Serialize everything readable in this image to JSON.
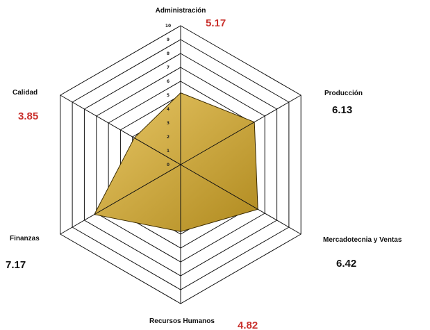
{
  "chart_data": {
    "type": "radar",
    "axes": [
      "Administración",
      "Producción",
      "Mercadotecnia y Ventas",
      "Recursos Humanos",
      "Finanzas",
      "Calidad"
    ],
    "values": [
      5.17,
      6.13,
      6.42,
      4.82,
      7.17,
      3.85
    ],
    "value_labels": [
      "5.17",
      "6.13",
      "6.42",
      "4.82",
      "7.17",
      "3.85"
    ],
    "highlight": [
      true,
      false,
      false,
      true,
      false,
      true
    ],
    "ticks": [
      "0",
      "1",
      "2",
      "3",
      "4",
      "5",
      "6",
      "7",
      "8",
      "9",
      "10"
    ],
    "range": [
      0,
      10
    ],
    "grid": true,
    "legend": "none"
  },
  "colors": {
    "fill_light": "#e8c766",
    "fill_dark": "#b08a1f",
    "outline": "#3a2a00",
    "grid": "#111111",
    "score_normal": "#111111",
    "score_highlight": "#c9302c"
  }
}
